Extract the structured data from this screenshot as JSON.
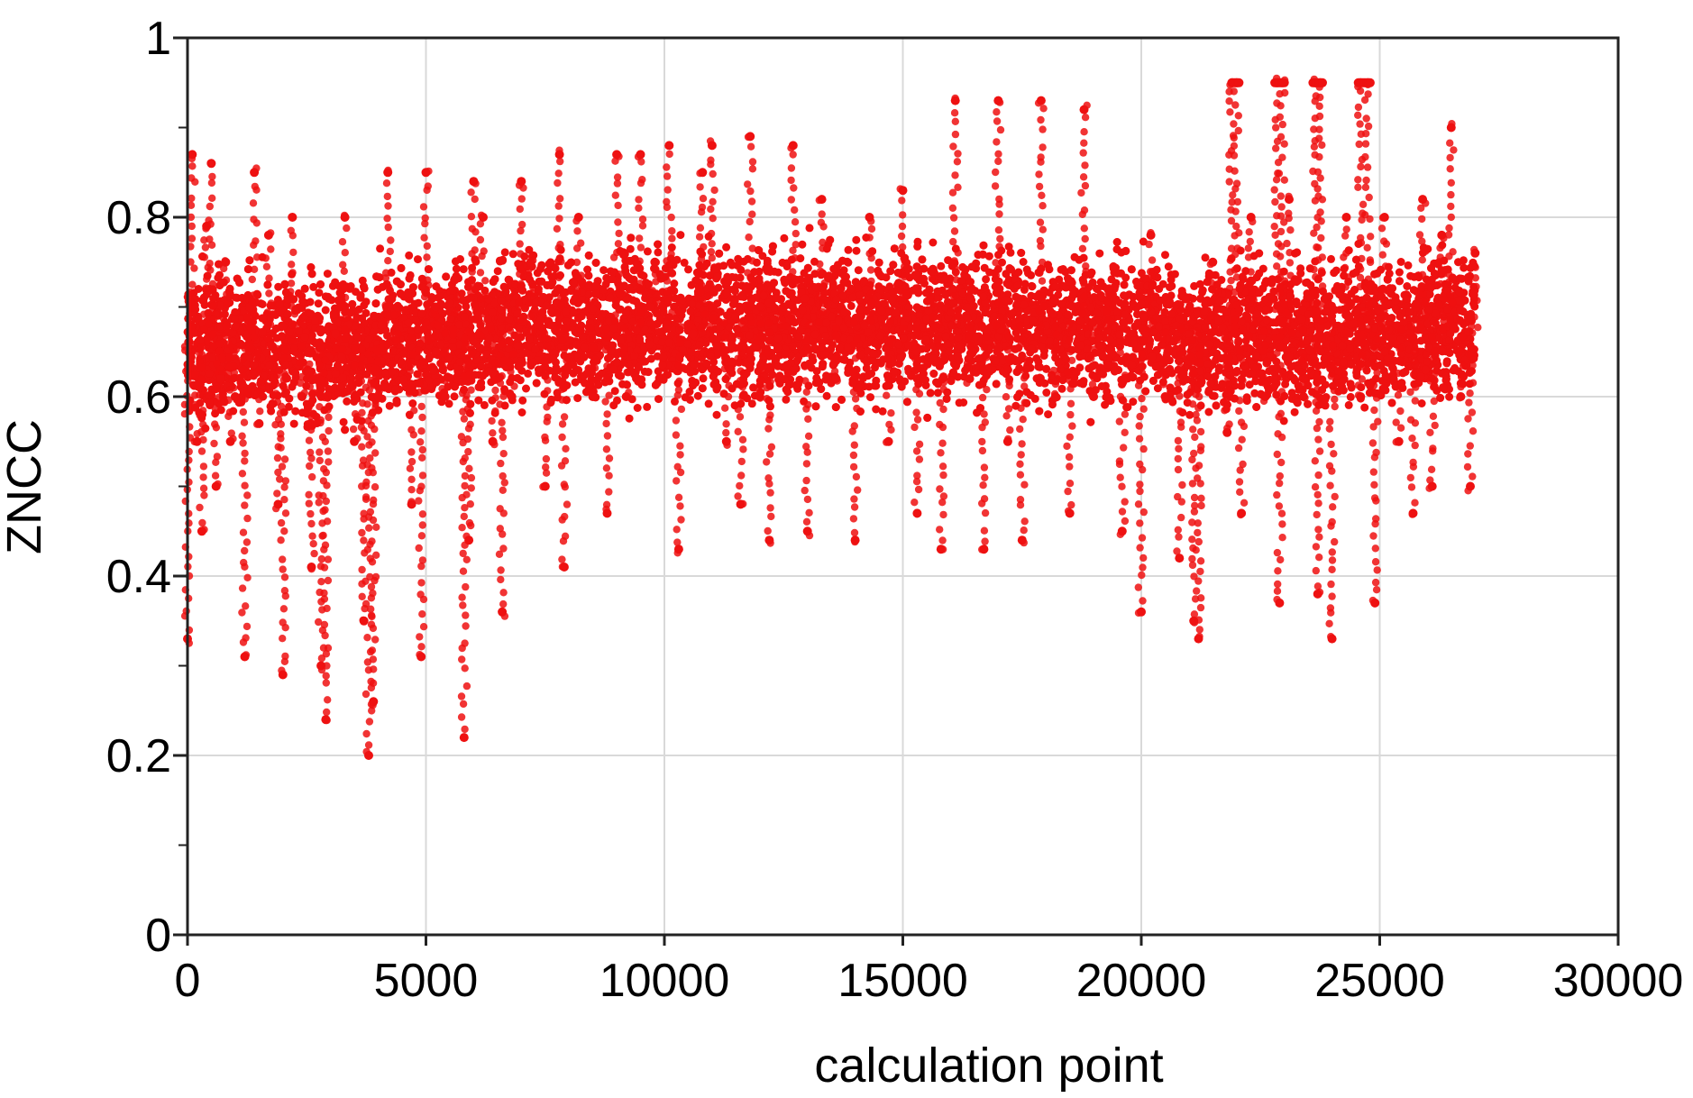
{
  "chart_data": {
    "type": "scatter",
    "title": "",
    "xlabel": "calculation point",
    "ylabel": "ZNCC",
    "xlim": [
      0,
      30000
    ],
    "ylim": [
      0,
      1
    ],
    "x_ticks": [
      0,
      5000,
      10000,
      15000,
      20000,
      25000,
      30000
    ],
    "x_tick_labels": [
      "0",
      "5000",
      "10000",
      "15000",
      "20000",
      "25000",
      "30000"
    ],
    "y_ticks": [
      0,
      0.2,
      0.4,
      0.6,
      0.8,
      1
    ],
    "y_tick_labels": [
      "0",
      "0.2",
      "0.4",
      "0.6",
      "0.8",
      "1"
    ],
    "y_minor_step": 0.1,
    "grid": true,
    "legend": "none",
    "marker_color": "#ee1111",
    "series": [
      {
        "points": [
          [
            0,
            0.33
          ],
          [
            100,
            0.87
          ],
          [
            200,
            0.55
          ],
          [
            300,
            0.45
          ],
          [
            400,
            0.79
          ],
          [
            500,
            0.86
          ],
          [
            600,
            0.5
          ],
          [
            700,
            0.62
          ],
          [
            800,
            0.75
          ],
          [
            900,
            0.55
          ],
          [
            1000,
            0.6
          ],
          [
            1200,
            0.31
          ],
          [
            1300,
            0.7
          ],
          [
            1400,
            0.85
          ],
          [
            1500,
            0.57
          ],
          [
            1700,
            0.78
          ],
          [
            1900,
            0.48
          ],
          [
            2000,
            0.29
          ],
          [
            2200,
            0.8
          ],
          [
            2400,
            0.6
          ],
          [
            2600,
            0.41
          ],
          [
            2800,
            0.3
          ],
          [
            2900,
            0.24
          ],
          [
            3100,
            0.67
          ],
          [
            3300,
            0.8
          ],
          [
            3500,
            0.55
          ],
          [
            3700,
            0.35
          ],
          [
            3800,
            0.2
          ],
          [
            3900,
            0.26
          ],
          [
            4000,
            0.6
          ],
          [
            4200,
            0.85
          ],
          [
            4400,
            0.7
          ],
          [
            4700,
            0.48
          ],
          [
            4900,
            0.31
          ],
          [
            5000,
            0.85
          ],
          [
            5200,
            0.7
          ],
          [
            5400,
            0.6
          ],
          [
            5600,
            0.73
          ],
          [
            5800,
            0.22
          ],
          [
            5900,
            0.44
          ],
          [
            6000,
            0.84
          ],
          [
            6200,
            0.8
          ],
          [
            6400,
            0.55
          ],
          [
            6600,
            0.36
          ],
          [
            6800,
            0.6
          ],
          [
            7000,
            0.84
          ],
          [
            7200,
            0.75
          ],
          [
            7500,
            0.5
          ],
          [
            7800,
            0.87
          ],
          [
            7900,
            0.41
          ],
          [
            8200,
            0.8
          ],
          [
            8500,
            0.6
          ],
          [
            8800,
            0.47
          ],
          [
            9000,
            0.87
          ],
          [
            9200,
            0.6
          ],
          [
            9500,
            0.87
          ],
          [
            9800,
            0.75
          ],
          [
            10100,
            0.88
          ],
          [
            10300,
            0.43
          ],
          [
            10600,
            0.67
          ],
          [
            10800,
            0.85
          ],
          [
            11000,
            0.88
          ],
          [
            11300,
            0.55
          ],
          [
            11600,
            0.48
          ],
          [
            11800,
            0.89
          ],
          [
            12000,
            0.6
          ],
          [
            12200,
            0.44
          ],
          [
            12500,
            0.7
          ],
          [
            12700,
            0.88
          ],
          [
            13000,
            0.45
          ],
          [
            13300,
            0.82
          ],
          [
            13600,
            0.62
          ],
          [
            14000,
            0.44
          ],
          [
            14300,
            0.8
          ],
          [
            14700,
            0.55
          ],
          [
            15000,
            0.83
          ],
          [
            15300,
            0.47
          ],
          [
            15600,
            0.74
          ],
          [
            15800,
            0.43
          ],
          [
            16100,
            0.93
          ],
          [
            16400,
            0.62
          ],
          [
            16700,
            0.43
          ],
          [
            17000,
            0.93
          ],
          [
            17200,
            0.55
          ],
          [
            17500,
            0.44
          ],
          [
            17900,
            0.93
          ],
          [
            18200,
            0.6
          ],
          [
            18500,
            0.47
          ],
          [
            18800,
            0.92
          ],
          [
            19000,
            0.6
          ],
          [
            19300,
            0.72
          ],
          [
            19600,
            0.45
          ],
          [
            20000,
            0.36
          ],
          [
            20200,
            0.78
          ],
          [
            20500,
            0.6
          ],
          [
            20800,
            0.42
          ],
          [
            21100,
            0.35
          ],
          [
            21200,
            0.33
          ],
          [
            21500,
            0.75
          ],
          [
            21800,
            0.56
          ],
          [
            22100,
            0.47
          ],
          [
            22300,
            0.8
          ],
          [
            22600,
            0.6
          ],
          [
            22900,
            0.37
          ],
          [
            23100,
            0.82
          ],
          [
            23400,
            0.6
          ],
          [
            23700,
            0.38
          ],
          [
            24000,
            0.33
          ],
          [
            24300,
            0.8
          ],
          [
            24600,
            0.6
          ],
          [
            24900,
            0.37
          ],
          [
            25100,
            0.8
          ],
          [
            25400,
            0.55
          ],
          [
            25700,
            0.47
          ],
          [
            25900,
            0.82
          ],
          [
            26100,
            0.5
          ],
          [
            26300,
            0.78
          ],
          [
            26500,
            0.9
          ],
          [
            26700,
            0.6
          ],
          [
            26900,
            0.5
          ],
          [
            27000,
            0.76
          ],
          [
            21900,
            0.95
          ],
          [
            22000,
            0.95
          ],
          [
            22850,
            0.95
          ],
          [
            22950,
            0.95
          ],
          [
            23650,
            0.95
          ],
          [
            23750,
            0.95
          ],
          [
            24600,
            0.95
          ],
          [
            24750,
            0.95
          ]
        ]
      }
    ],
    "dense_band": {
      "x_range": [
        0,
        27000
      ],
      "y_center": [
        [
          0,
          0.66
        ],
        [
          3000,
          0.65
        ],
        [
          6000,
          0.67
        ],
        [
          9000,
          0.68
        ],
        [
          12000,
          0.68
        ],
        [
          15000,
          0.68
        ],
        [
          18000,
          0.68
        ],
        [
          21000,
          0.67
        ],
        [
          24000,
          0.67
        ],
        [
          27000,
          0.68
        ]
      ],
      "core_halfwidth": 0.07
    }
  }
}
